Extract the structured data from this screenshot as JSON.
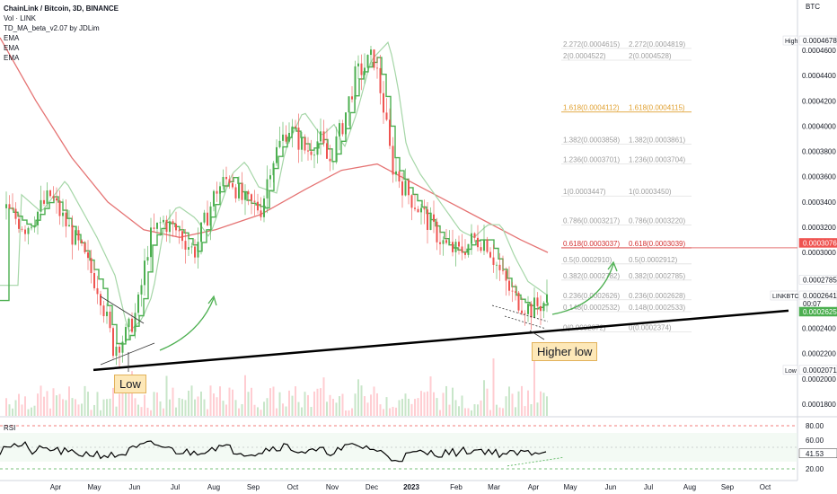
{
  "header": {
    "title": "ChainLink / Bitcoin, 3D, BINANCE",
    "indicators": [
      "Vol · LINK",
      "TD_MA_beta_v2.07 by JDLim",
      "EMA",
      "EMA",
      "EMA"
    ]
  },
  "annotations": {
    "low": "Low",
    "higher_low": "Higher low"
  },
  "colors": {
    "up": "#4caf50",
    "down": "#ef5350",
    "red_line": "#e57373",
    "green_ma": "#4caf50",
    "ema_light": "#a5d6a7",
    "trend": "#000000",
    "fib_gold": "#e0a030",
    "fib_red": "#d32f2f",
    "rsi": "#000000"
  },
  "chart_data": {
    "type": "line",
    "title": "ChainLink / Bitcoin, 3D, BINANCE",
    "ylabel": "BTC",
    "ylim": [
      0.00017,
      0.00049
    ],
    "x_ticks": [
      "Apr",
      "May",
      "Jun",
      "Jul",
      "Aug",
      "Sep",
      "Oct",
      "Nov",
      "Dec",
      "2023",
      "Feb",
      "Mar",
      "Apr",
      "May",
      "Jun",
      "Jul",
      "Aug",
      "Sep",
      "Oct"
    ],
    "y_ticks": [
      "0.0001800",
      "0.0002000",
      "0.0002200",
      "0.0002400",
      "0.0002600",
      "0.0002800",
      "0.0003000",
      "0.0003200",
      "0.0003400",
      "0.0003600",
      "0.0003800",
      "0.0004000",
      "0.0004200",
      "0.0004400",
      "0.0004600"
    ],
    "price_labels": [
      {
        "label": "High",
        "value": "0.0004678",
        "style": "plain"
      },
      {
        "label": "",
        "value": "0.0003076",
        "style": "red"
      },
      {
        "label": "",
        "value": "0.0002785",
        "style": "plain"
      },
      {
        "label": "LINKBTC",
        "value": "0.0002641",
        "style": "plain"
      },
      {
        "label": "",
        "value": "00:07",
        "style": "plain"
      },
      {
        "label": "",
        "value": "0.0002625",
        "style": "green"
      },
      {
        "label": "Low",
        "value": "0.0002071",
        "style": "plain"
      }
    ],
    "fib_levels": [
      {
        "ratio": "2.272",
        "left": "0.0004615",
        "right": "0.0004819",
        "color": "#9e9e9e"
      },
      {
        "ratio": "2",
        "left": "0.0004522",
        "right": "0.0004528",
        "color": "#9e9e9e"
      },
      {
        "ratio": "1.618",
        "left": "0.0004112",
        "right": "0.0004115",
        "color": "#e0a030"
      },
      {
        "ratio": "1.382",
        "left": "0.0003858",
        "right": "0.0003861",
        "color": "#9e9e9e"
      },
      {
        "ratio": "1.236",
        "left": "0.0003701",
        "right": "0.0003704",
        "color": "#9e9e9e"
      },
      {
        "ratio": "1",
        "left": "0.0003447",
        "right": "0.0003450",
        "color": "#9e9e9e"
      },
      {
        "ratio": "0.786",
        "left": "0.0003217",
        "right": "0.0003220",
        "color": "#9e9e9e"
      },
      {
        "ratio": "0.618",
        "left": "0.0003037",
        "right": "0.0003039",
        "color": "#d32f2f"
      },
      {
        "ratio": "0.5",
        "left": "0.0002910",
        "right": "0.0002912",
        "color": "#9e9e9e"
      },
      {
        "ratio": "0.382",
        "left": "0.0002782",
        "right": "0.0002785",
        "color": "#9e9e9e"
      },
      {
        "ratio": "0.236",
        "left": "0.0002626",
        "right": "0.0002628",
        "color": "#9e9e9e"
      },
      {
        "ratio": "0.148",
        "left": "0.0002532",
        "right": "0.0002533",
        "color": "#9e9e9e"
      },
      {
        "ratio": "0",
        "left": "0.0002372",
        "right": "0.0002374",
        "color": "#9e9e9e"
      }
    ],
    "price_path": [
      [
        "Mar",
        0.000335
      ],
      [
        "Apr",
        0.00032
      ],
      [
        "Apr",
        0.000345
      ],
      [
        "Apr",
        0.0003
      ],
      [
        "May",
        0.00027
      ],
      [
        "May",
        0.000225
      ],
      [
        "May",
        0.000235
      ],
      [
        "Jun",
        0.000255
      ],
      [
        "Jun",
        0.00031
      ],
      [
        "Jun",
        0.000325
      ],
      [
        "Jul",
        0.000315
      ],
      [
        "Jul",
        0.0003
      ],
      [
        "Aug",
        0.00035
      ],
      [
        "Aug",
        0.00036
      ],
      [
        "Sep",
        0.00034
      ],
      [
        "Sep",
        0.000335
      ],
      [
        "Sep",
        0.00037
      ],
      [
        "Oct",
        0.0004
      ],
      [
        "Oct",
        0.00038
      ],
      [
        "Oct",
        0.00039
      ],
      [
        "Nov",
        0.00037
      ],
      [
        "Nov",
        0.0004
      ],
      [
        "Nov",
        0.00044
      ],
      [
        "Dec",
        0.000455
      ],
      [
        "Dec",
        0.00042
      ],
      [
        "Dec",
        0.00037
      ],
      [
        "2023",
        0.00035
      ],
      [
        "2023",
        0.00033
      ],
      [
        "Feb",
        0.000305
      ],
      [
        "Feb",
        0.0003
      ],
      [
        "Feb",
        0.00031
      ],
      [
        "Mar",
        0.00031
      ],
      [
        "Mar",
        0.000285
      ],
      [
        "Mar",
        0.000265
      ],
      [
        "Apr",
        0.000255
      ],
      [
        "Apr",
        0.000262
      ]
    ],
    "trendline": {
      "from": [
        "May",
        0.0002071
      ],
      "to": [
        "Jun (2023)",
        0.000255
      ]
    },
    "rsi": {
      "label": "RSI",
      "levels": [
        "80.00",
        "60.00",
        "20.00"
      ],
      "current": "41.53",
      "upper_band": 70,
      "lower_band": 30
    }
  }
}
